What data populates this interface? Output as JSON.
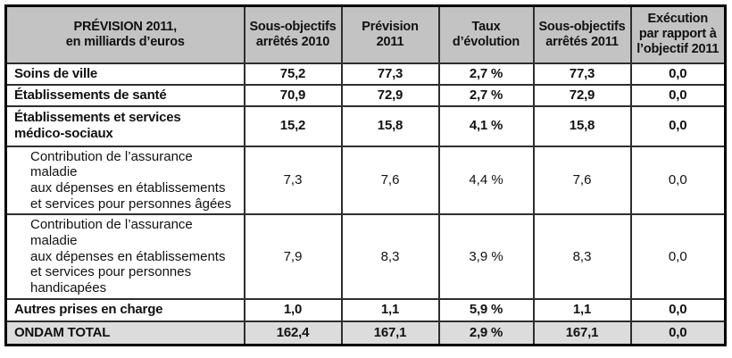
{
  "colors": {
    "header_bg": "#c3c3c3",
    "total_row_bg": "#dcdcdc",
    "border": "#000000",
    "text": "#111111"
  },
  "table": {
    "header": [
      "PRÉVISION 2011,\nen milliards d’euros",
      "Sous-objectifs\narrêtés 2010",
      "Prévision\n2011",
      "Taux\nd’évolution",
      "Sous-objectifs\narrêtés 2011",
      "Exécution\npar rapport à\nl’objectif 2011"
    ],
    "rows": [
      {
        "label": "Soins de ville",
        "values": [
          "75,2",
          "77,3",
          "2,7 %",
          "77,3",
          "0,0"
        ]
      },
      {
        "label": "Établissements de santé",
        "values": [
          "70,9",
          "72,9",
          "2,7 %",
          "72,9",
          "0,0"
        ]
      },
      {
        "label": "Établissements et services\nmédico-sociaux",
        "values": [
          "15,2",
          "15,8",
          "4,1 %",
          "15,8",
          "0,0"
        ]
      },
      {
        "label": "Contribution de l’assurance maladie\naux dépenses en établissements\net services pour personnes âgées",
        "values": [
          "7,3",
          "7,6",
          "4,4 %",
          "7,6",
          "0,0"
        ]
      },
      {
        "label": "Contribution de l’assurance maladie\naux dépenses en établissements\net services pour personnes\nhandicapées",
        "values": [
          "7,9",
          "8,3",
          "3,9 %",
          "8,3",
          "0,0"
        ]
      },
      {
        "label": "Autres prises en charge",
        "values": [
          "1,0",
          "1,1",
          "5,9 %",
          "1,1",
          "0,0"
        ]
      },
      {
        "label": "ONDAM TOTAL",
        "values": [
          "162,4",
          "167,1",
          "2,9 %",
          "167,1",
          "0,0"
        ]
      }
    ]
  }
}
